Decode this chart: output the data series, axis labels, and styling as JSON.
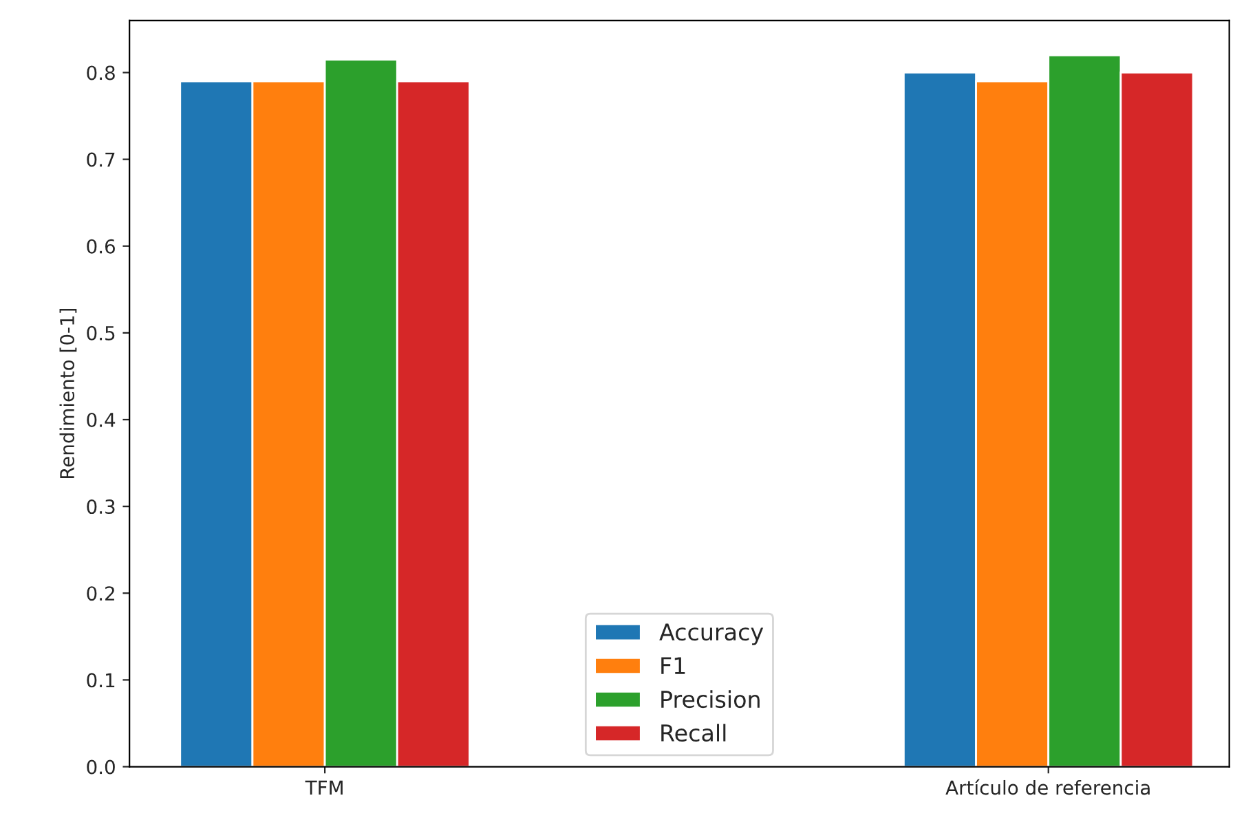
{
  "chart_data": {
    "type": "bar",
    "ylabel": "Rendimiento [0-1]",
    "categories": [
      "TFM",
      "Artículo de referencia"
    ],
    "series": [
      {
        "name": "Accuracy",
        "color": "#1f77b4",
        "values": [
          0.79,
          0.8
        ]
      },
      {
        "name": "F1",
        "color": "#ff7f0e",
        "values": [
          0.79,
          0.79
        ]
      },
      {
        "name": "Precision",
        "color": "#2ca02c",
        "values": [
          0.815,
          0.82
        ]
      },
      {
        "name": "Recall",
        "color": "#d62728",
        "values": [
          0.79,
          0.8
        ]
      }
    ],
    "ylim": [
      0,
      0.86
    ],
    "yticks": [
      {
        "value": 0,
        "label": "0.0"
      },
      0.1,
      0.2,
      0.3,
      0.4,
      0.5,
      0.6,
      0.7,
      0.8
    ],
    "grid": false,
    "legend": "bottom"
  }
}
